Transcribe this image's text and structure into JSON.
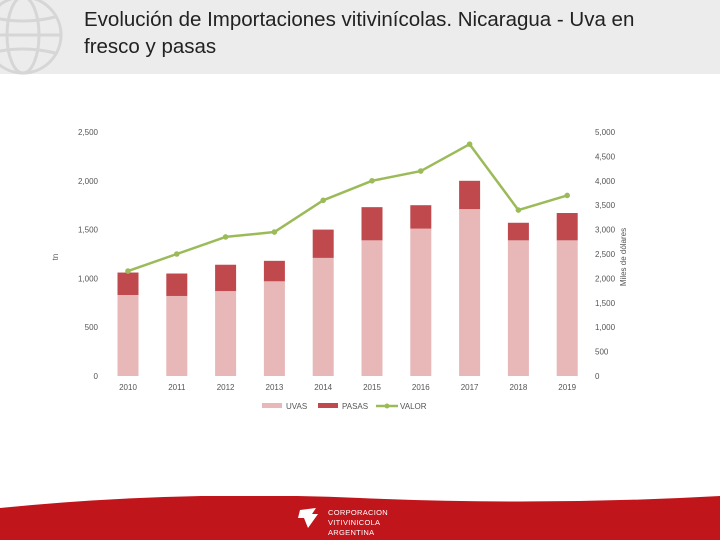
{
  "title": "Evolución de Importaciones vitivinícolas. Nicaragua - Uva en fresco y pasas",
  "footer": {
    "logo_text": "CORPORACION VITIVINICOLA\nARGENTINA"
  },
  "colors": {
    "uvas": "#e8b7b8",
    "pasas": "#c0494d",
    "valor": "#9bbb59",
    "header": "#ececec",
    "footer": "#c0151b"
  },
  "chart_data": {
    "type": "bar",
    "title": "",
    "categories": [
      "2010",
      "2011",
      "2012",
      "2013",
      "2014",
      "2015",
      "2016",
      "2017",
      "2018",
      "2019"
    ],
    "series": [
      {
        "name": "UVAS",
        "type": "stacked-bar",
        "axis": "left",
        "values": [
          830,
          820,
          870,
          970,
          1210,
          1390,
          1510,
          1710,
          1390,
          1390
        ]
      },
      {
        "name": "PASAS",
        "type": "stacked-bar",
        "axis": "left",
        "values": [
          230,
          230,
          270,
          210,
          290,
          340,
          240,
          290,
          180,
          280
        ]
      },
      {
        "name": "VALOR",
        "type": "line",
        "axis": "right",
        "values": [
          2150,
          2500,
          2850,
          2950,
          3600,
          4000,
          4200,
          4750,
          3400,
          3700
        ]
      }
    ],
    "ylabel": "tn",
    "y2label": "Miles de dólares",
    "ylim": [
      0,
      2500
    ],
    "y2lim": [
      0,
      5000
    ],
    "yticks": [
      "0",
      "500",
      "1,000",
      "1,500",
      "2,000",
      "2,500"
    ],
    "y2ticks": [
      "0",
      "500",
      "1,000",
      "1,500",
      "2,000",
      "2,500",
      "3,000",
      "3,500",
      "4,000",
      "4,500",
      "5,000"
    ],
    "legend": [
      "UVAS",
      "PASAS",
      "VALOR"
    ],
    "legend_position": "bottom",
    "grid": false
  }
}
